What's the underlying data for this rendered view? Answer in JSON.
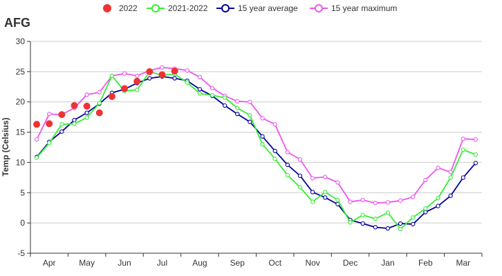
{
  "chart_data": {
    "type": "line",
    "title": "AFG",
    "ylabel": "Temp (Celsius)",
    "xlabel": "",
    "ylim": [
      -5,
      30
    ],
    "yticks": [
      -5,
      0,
      5,
      10,
      15,
      20,
      25,
      30
    ],
    "grid": "horizontal",
    "legend_position": "top",
    "month_labels": [
      "Apr",
      "May",
      "Jun",
      "Jul",
      "Aug",
      "Sep",
      "Oct",
      "Nov",
      "Dec",
      "Jan",
      "Feb",
      "Mar"
    ],
    "colors": {
      "s2022": "#ee3333",
      "s2021_2022": "#33ee33",
      "s15_avg": "#000099",
      "s15_max": "#ee55ee",
      "grid": "#cccccc",
      "axis": "#333333"
    },
    "series": [
      {
        "name": "2022",
        "style": "markers",
        "values": [
          16.3,
          16.4,
          17.9,
          19.4,
          19.3,
          18.2,
          20.9,
          22.2,
          23.4,
          25.0,
          24.5,
          25.1
        ]
      },
      {
        "name": "2021-2022",
        "style": "line",
        "values": [
          10.8,
          13.2,
          16.3,
          16.4,
          17.4,
          19.8,
          24.3,
          21.8,
          22.0,
          25.0,
          24.4,
          24.6,
          23.2,
          21.4,
          21.1,
          20.7,
          19.0,
          17.8,
          13.0,
          10.6,
          7.9,
          5.9,
          3.5,
          5.1,
          3.8,
          0.1,
          1.3,
          0.7,
          1.7,
          -1.0,
          0.9,
          2.4,
          4.1,
          7.5,
          12.1,
          11.3
        ]
      },
      {
        "name": "15 year average",
        "style": "line",
        "values": [
          10.9,
          13.4,
          15.1,
          17.0,
          18.2,
          19.7,
          21.5,
          22.1,
          23.1,
          23.9,
          24.2,
          23.9,
          23.5,
          22.1,
          21.0,
          19.4,
          18.0,
          16.7,
          14.3,
          11.9,
          9.6,
          7.8,
          5.1,
          4.2,
          3.1,
          0.5,
          -0.1,
          -0.7,
          -0.9,
          -0.1,
          -0.2,
          1.8,
          2.8,
          4.5,
          7.5,
          9.9
        ]
      },
      {
        "name": "15 year maximum",
        "style": "line",
        "values": [
          13.8,
          18.0,
          17.9,
          19.0,
          21.2,
          21.6,
          24.3,
          24.7,
          24.3,
          25.2,
          25.7,
          25.5,
          25.2,
          24.1,
          22.3,
          21.0,
          20.1,
          20.0,
          17.3,
          16.3,
          11.7,
          10.5,
          7.4,
          7.6,
          6.7,
          3.5,
          3.8,
          3.3,
          3.4,
          3.7,
          4.3,
          7.1,
          9.1,
          8.4,
          13.9,
          13.8
        ]
      }
    ]
  }
}
